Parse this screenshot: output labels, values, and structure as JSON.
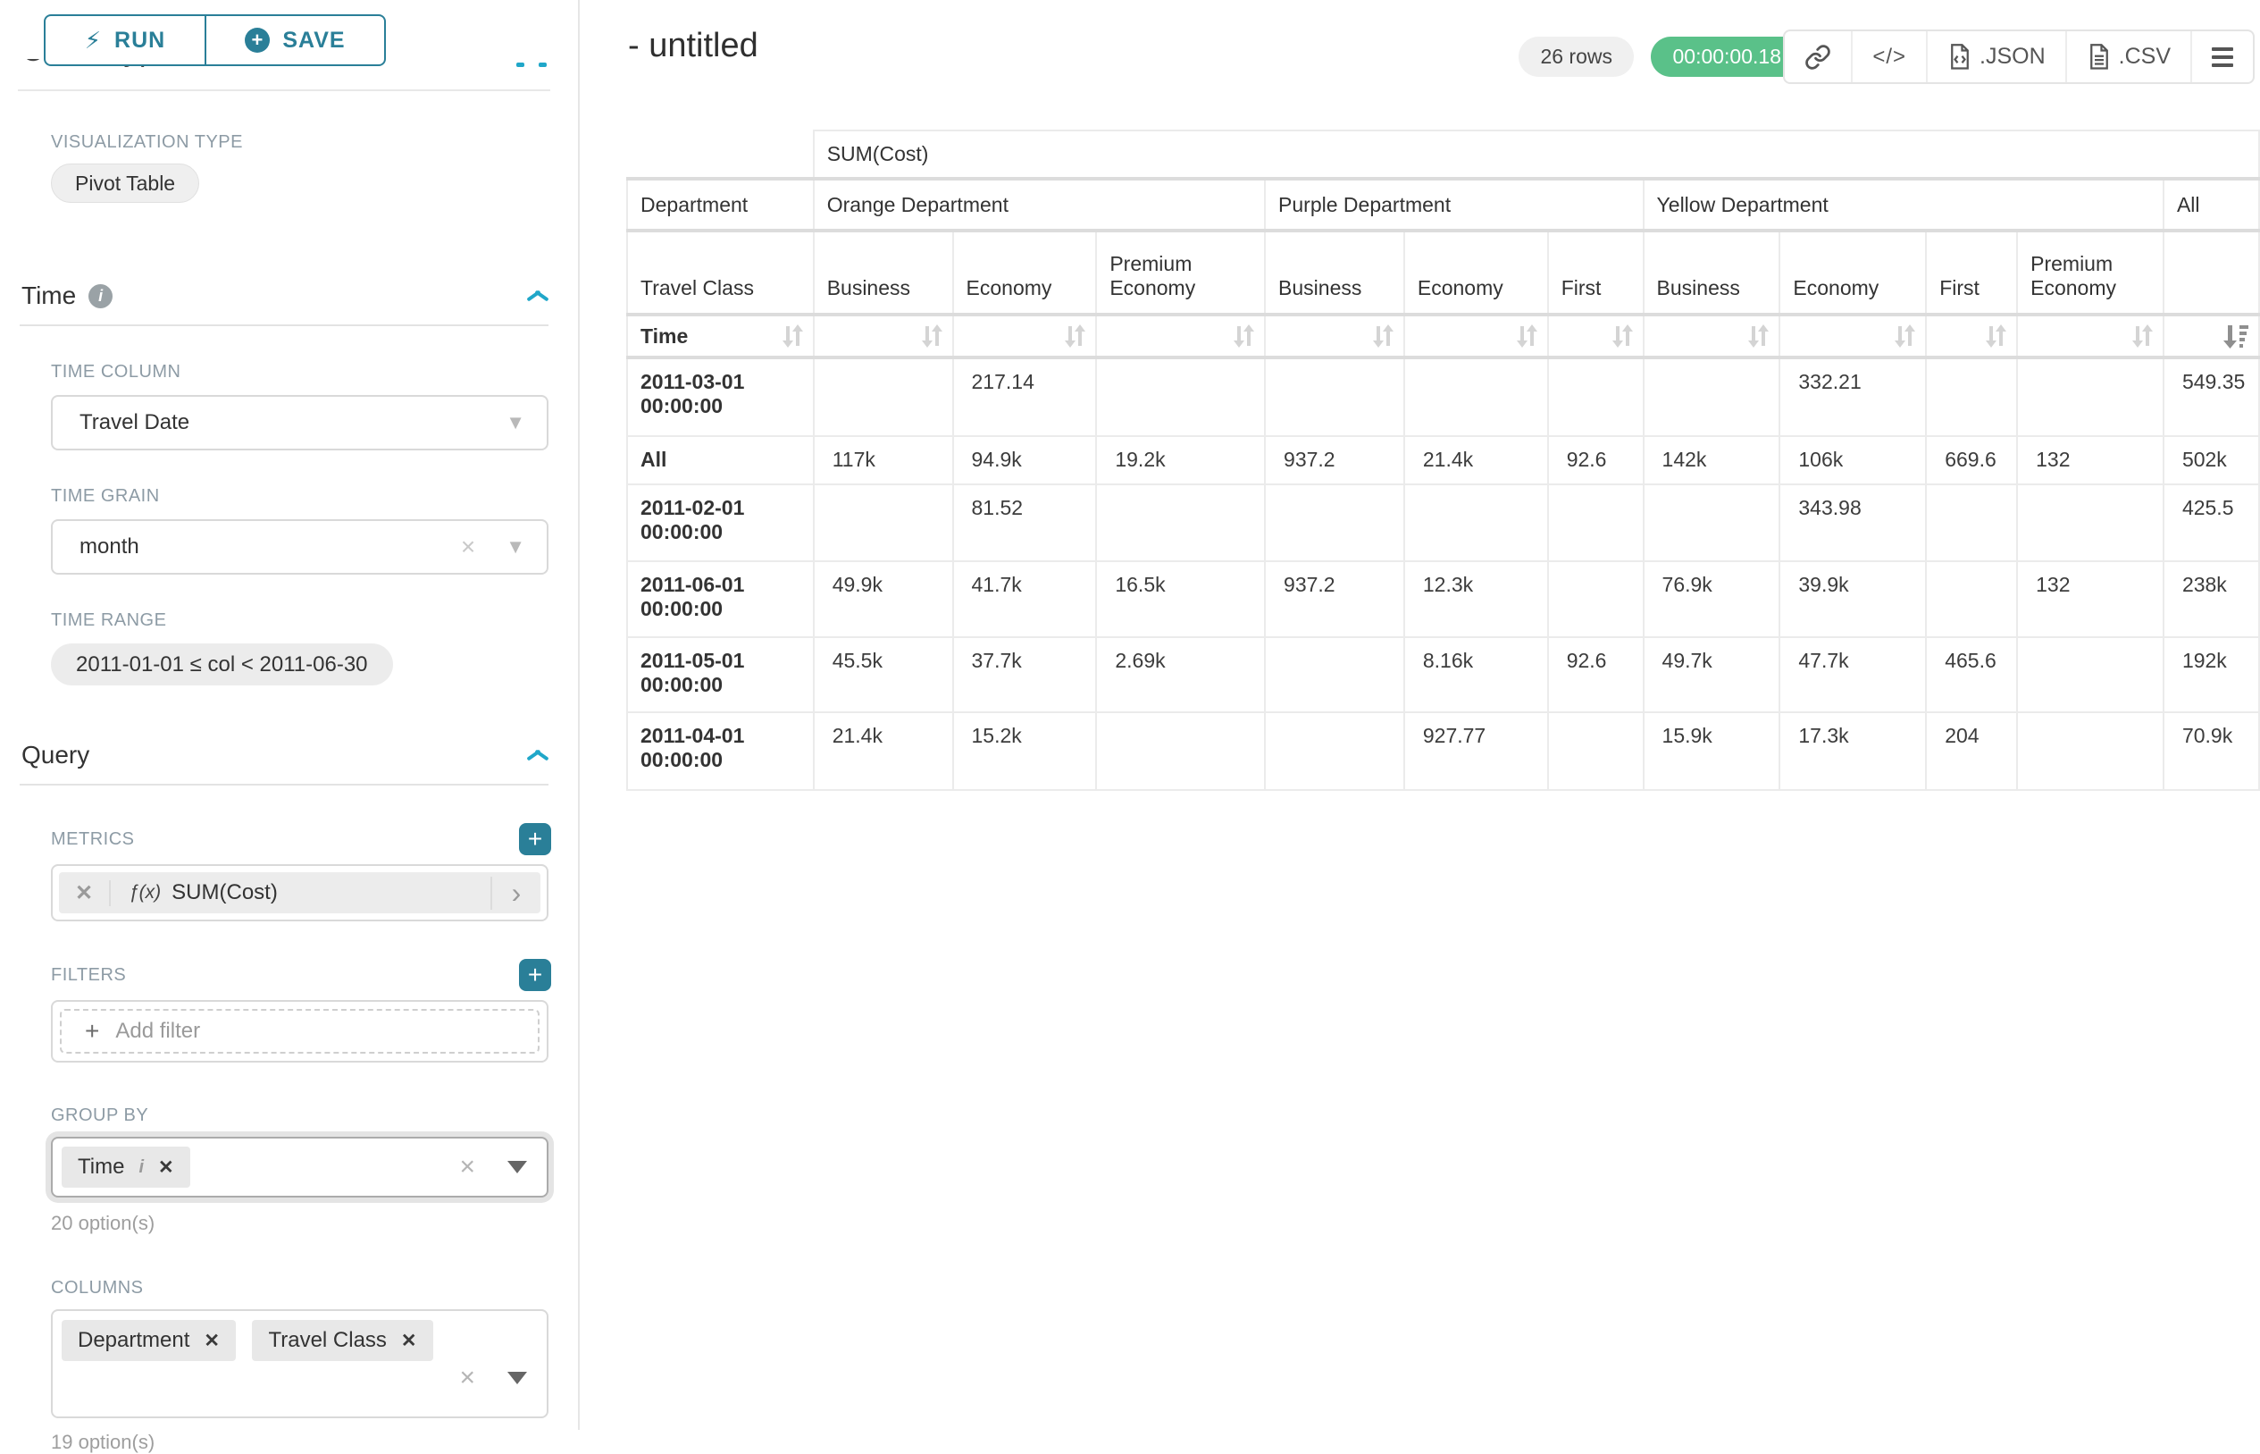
{
  "colors": {
    "accent": "#2a7f98",
    "chevron_blue": "#20a7c9",
    "success_green": "#5ac189"
  },
  "sidebar": {
    "run_label": "RUN",
    "save_label": "SAVE",
    "chart_type_heading": "Chart Type",
    "viz_type_label": "VISUALIZATION TYPE",
    "viz_type_value": "Pivot Table",
    "time_section_title": "Time",
    "time_column_label": "TIME COLUMN",
    "time_column_value": "Travel Date",
    "time_grain_label": "TIME GRAIN",
    "time_grain_value": "month",
    "time_range_label": "TIME RANGE",
    "time_range_value": "2011-01-01 ≤ col < 2011-06-30",
    "query_section_title": "Query",
    "metrics_label": "METRICS",
    "metric_fx": "ƒ(x)",
    "metric_value": "SUM(Cost)",
    "filters_label": "FILTERS",
    "add_filter_label": "Add filter",
    "group_by_label": "GROUP BY",
    "group_by_chips": [
      "Time"
    ],
    "group_by_options_hint": "20 option(s)",
    "columns_label": "COLUMNS",
    "columns_chips": [
      "Department",
      "Travel Class"
    ],
    "columns_options_hint": "19 option(s)"
  },
  "header": {
    "title": "- untitled",
    "rows_badge": "26 rows",
    "timer_badge": "00:00:00.18",
    "json_button": ".JSON",
    "csv_button": ".CSV"
  },
  "pivot": {
    "metric_header": "SUM(Cost)",
    "row_dim1_label": "Department",
    "row_dim2_label": "Travel Class",
    "time_row_label": "Time",
    "groups": [
      {
        "label": "Orange Department",
        "cols": [
          "Business",
          "Economy",
          "Premium Economy"
        ]
      },
      {
        "label": "Purple Department",
        "cols": [
          "Business",
          "Economy",
          "First"
        ]
      },
      {
        "label": "Yellow Department",
        "cols": [
          "Business",
          "Economy",
          "First",
          "Premium Economy"
        ]
      },
      {
        "label": "All",
        "cols": [
          ""
        ]
      }
    ],
    "rows": [
      {
        "label": "2011-03-01 00:00:00",
        "values": [
          "",
          "217.14",
          "",
          "",
          "",
          "",
          "",
          "332.21",
          "",
          "",
          "549.35"
        ]
      },
      {
        "label": "All",
        "values": [
          "117k",
          "94.9k",
          "19.2k",
          "937.2",
          "21.4k",
          "92.6",
          "142k",
          "106k",
          "669.6",
          "132",
          "502k"
        ]
      },
      {
        "label": "2011-02-01 00:00:00",
        "values": [
          "",
          "81.52",
          "",
          "",
          "",
          "",
          "",
          "343.98",
          "",
          "",
          "425.5"
        ]
      },
      {
        "label": "2011-06-01 00:00:00",
        "values": [
          "49.9k",
          "41.7k",
          "16.5k",
          "937.2",
          "12.3k",
          "",
          "76.9k",
          "39.9k",
          "",
          "132",
          "238k"
        ]
      },
      {
        "label": "2011-05-01 00:00:00",
        "values": [
          "45.5k",
          "37.7k",
          "2.69k",
          "",
          "8.16k",
          "92.6",
          "49.7k",
          "47.7k",
          "465.6",
          "",
          "192k"
        ]
      },
      {
        "label": "2011-04-01 00:00:00",
        "values": [
          "21.4k",
          "15.2k",
          "",
          "",
          "927.77",
          "",
          "15.9k",
          "17.3k",
          "204",
          "",
          "70.9k"
        ]
      }
    ],
    "sorted_desc_column": "All"
  }
}
